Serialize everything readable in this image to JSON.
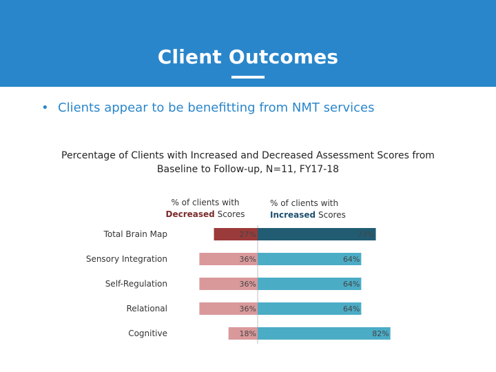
{
  "header": {
    "title": "Client Outcomes",
    "bg_color": "#2A86CA"
  },
  "bullet": {
    "text": "Clients appear to be benefitting from NMT services"
  },
  "chart_data": {
    "type": "bar",
    "orientation": "horizontal-diverging",
    "title_line1": "Percentage of Clients with Increased and Decreased Assessment Scores from",
    "title_line2": "Baseline to Follow-up, N=11, FY17-18",
    "categories": [
      "Total Brain Map",
      "Sensory Integration",
      "Self-Regulation",
      "Relational",
      "Cognitive"
    ],
    "series": [
      {
        "name": "% of clients with Decreased Scores",
        "legend_prefix": "% of clients with",
        "legend_emphasis": "Decreased",
        "legend_suffix": "Scores",
        "values": [
          27,
          36,
          36,
          36,
          18
        ],
        "colors": [
          "#9B3A3A",
          "#D9999B",
          "#D9999B",
          "#D9999B",
          "#D9999B"
        ]
      },
      {
        "name": "% of clients with Increased Scores",
        "legend_prefix": "% of clients with",
        "legend_emphasis": "Increased",
        "legend_suffix": "Scores",
        "values": [
          73,
          64,
          64,
          64,
          82
        ],
        "colors": [
          "#215C73",
          "#4BACC6",
          "#4BACC6",
          "#4BACC6",
          "#4BACC6"
        ]
      }
    ],
    "value_suffix": "%",
    "xlim": [
      -100,
      100
    ]
  }
}
